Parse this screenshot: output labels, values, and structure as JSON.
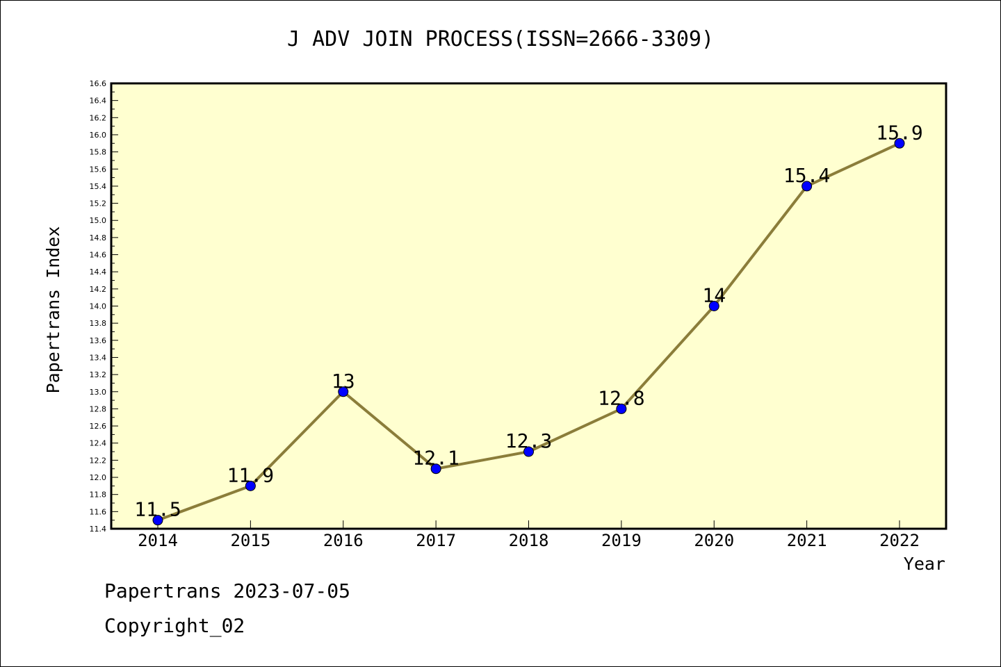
{
  "chart_data": {
    "type": "line",
    "title": "J ADV JOIN PROCESS(ISSN=2666-3309)",
    "xlabel": "Year",
    "ylabel": "Papertrans Index",
    "categories": [
      "2014",
      "2015",
      "2016",
      "2017",
      "2018",
      "2019",
      "2020",
      "2021",
      "2022"
    ],
    "series": [
      {
        "values": [
          11.5,
          11.9,
          13,
          12.1,
          12.3,
          12.8,
          14,
          15.4,
          15.9
        ],
        "data_labels": [
          "11.5",
          "11.9",
          "13",
          "12.1",
          "12.3",
          "12.8",
          "14",
          "15.4",
          "15.9"
        ]
      }
    ],
    "ylim": [
      11.4,
      16.6
    ],
    "ytick_step": 0.2,
    "grid": false,
    "legend": "none",
    "colors": {
      "plot_background": "#ffffd0",
      "line": "#8b7d3a",
      "marker": "#0000ff"
    }
  },
  "footer": {
    "line1": "Papertrans 2023-07-05",
    "line2": "Copyright_02"
  }
}
